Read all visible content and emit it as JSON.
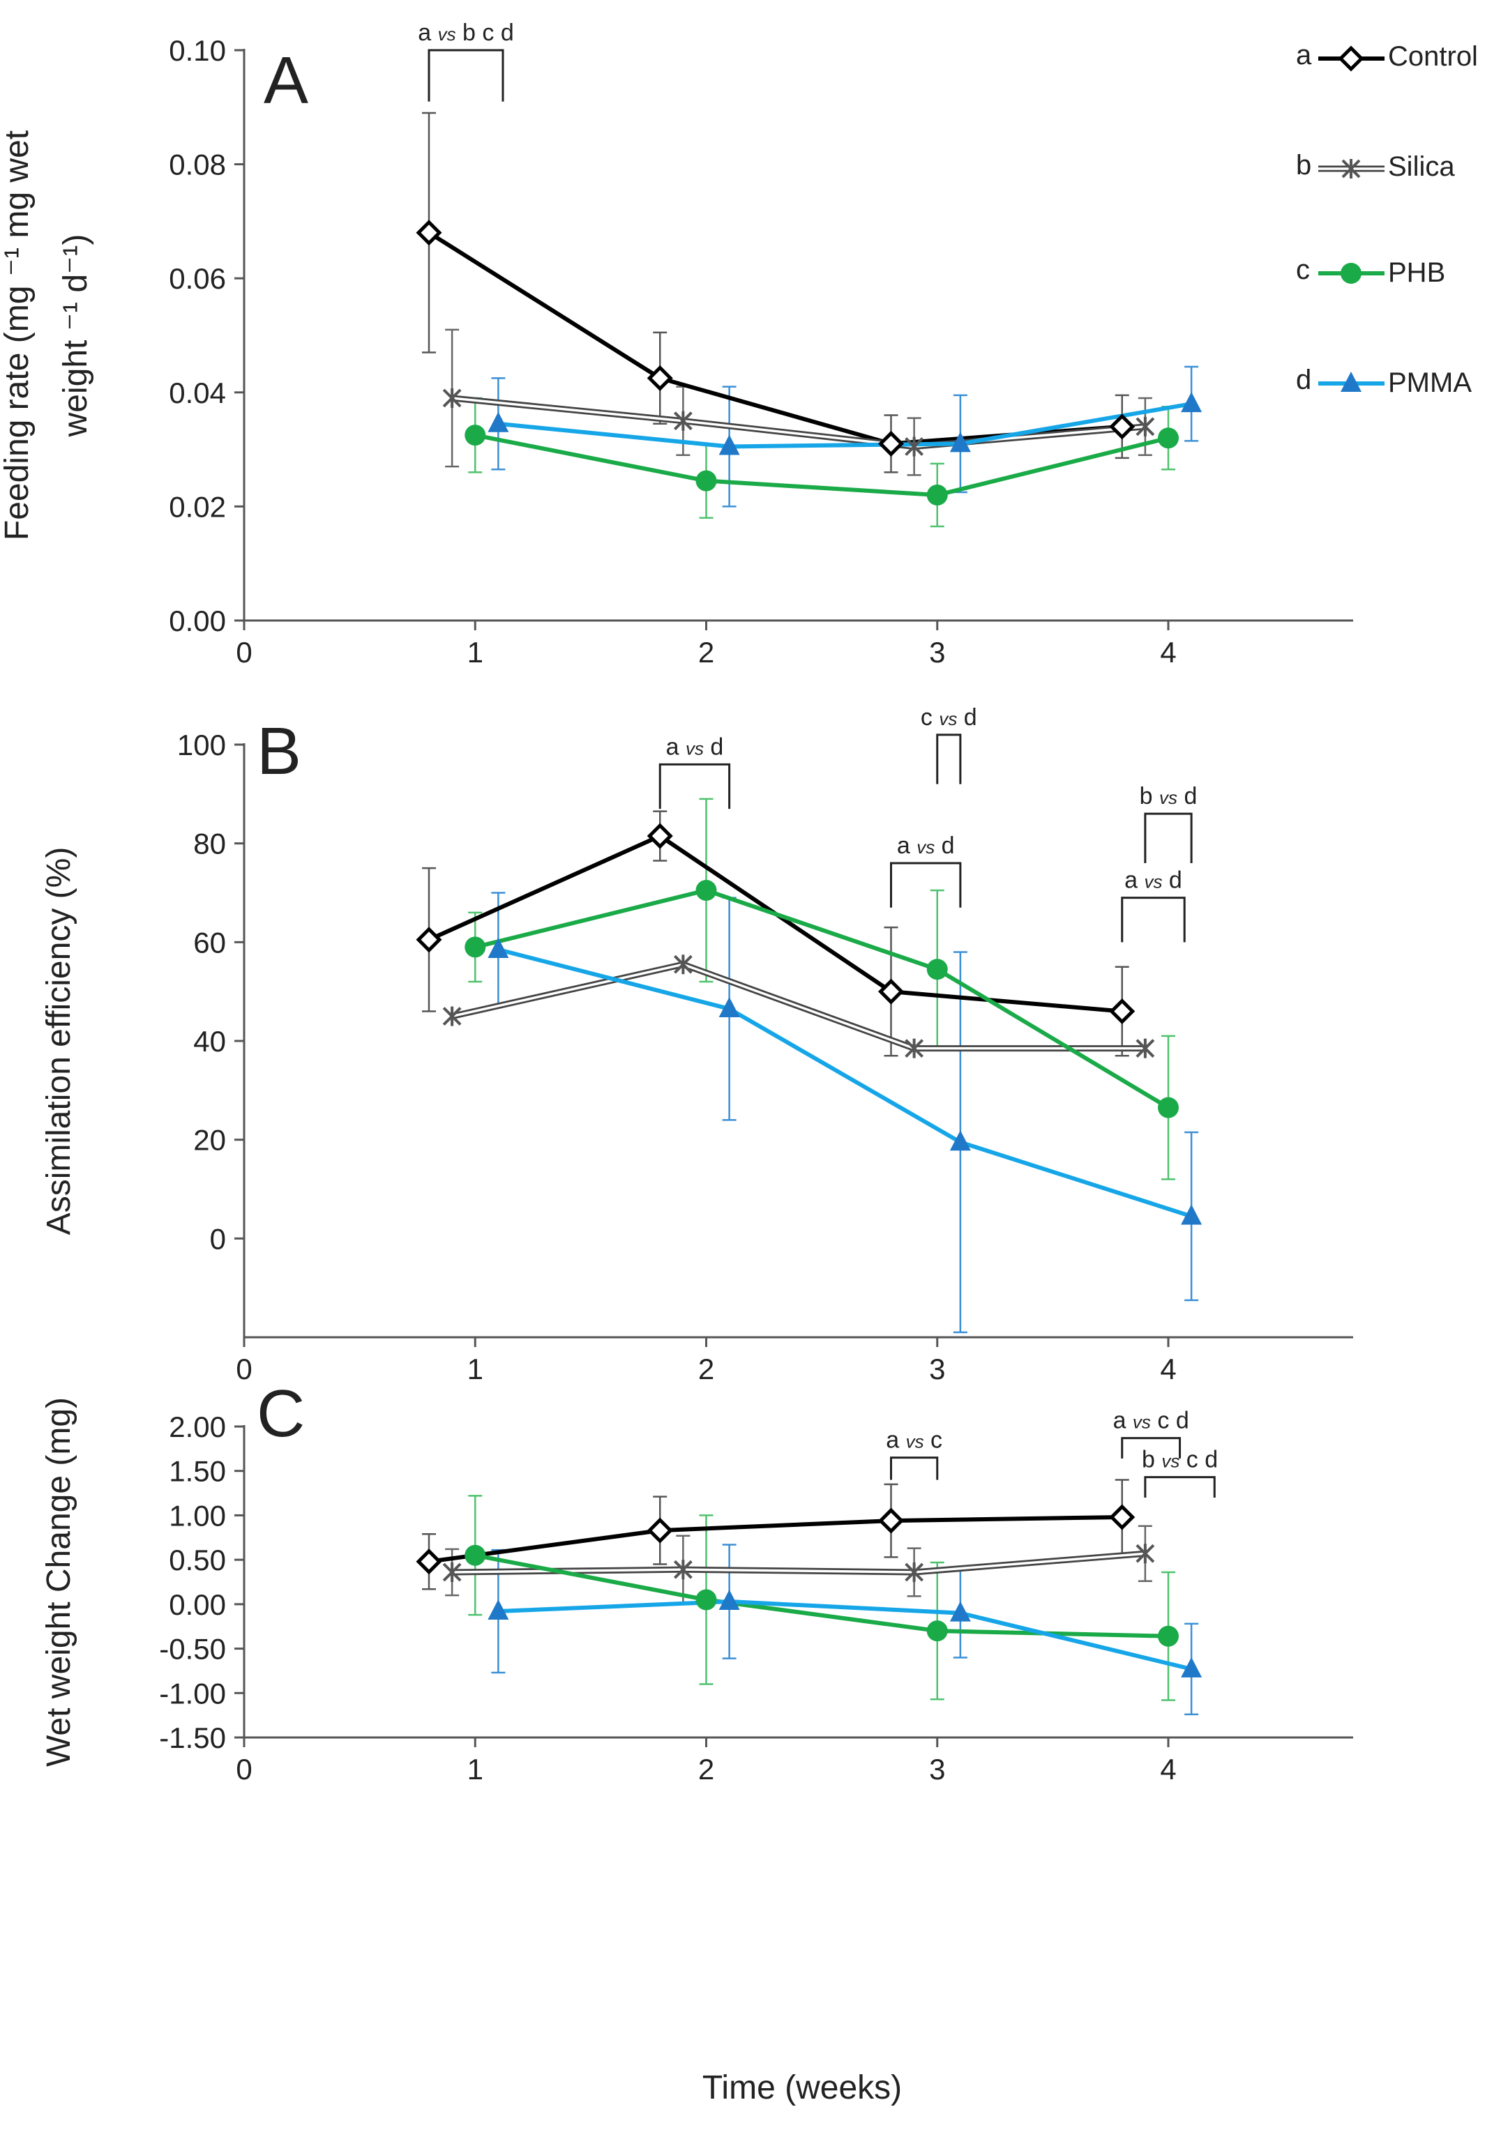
{
  "figure": {
    "xlabel": "Time (weeks)",
    "colors": {
      "control": "#000000",
      "silica": "#777777",
      "phb": "#1aaa48",
      "pmma": "#16a6e8",
      "pmma_marker": "#1f78c8",
      "axis": "#555555"
    }
  },
  "legend": {
    "entries": [
      {
        "letter": "a",
        "label": "Control",
        "series": "control"
      },
      {
        "letter": "b",
        "label": "Silica",
        "series": "silica"
      },
      {
        "letter": "c",
        "label": "PHB",
        "series": "phb"
      },
      {
        "letter": "d",
        "label": "PMMA",
        "series": "pmma"
      }
    ]
  },
  "chart_data": [
    {
      "type": "line",
      "panel": "A",
      "ylabel_lines": [
        "Feeding rate (mg ⁻¹ mg wet",
        "weight ⁻¹ d⁻¹)"
      ],
      "xlim": [
        0,
        4.8
      ],
      "ylim": [
        0,
        0.1
      ],
      "xticks": [
        0,
        1,
        2,
        3,
        4
      ],
      "xtick_labels": [
        "0",
        "1",
        "2",
        "3",
        "4"
      ],
      "yticks": [
        0,
        0.02,
        0.04,
        0.06,
        0.08,
        0.1
      ],
      "ytick_labels": [
        "0.00",
        "0.02",
        "0.04",
        "0.06",
        "0.08",
        "0.10"
      ],
      "series": [
        {
          "key": "control",
          "name": "Control",
          "x": [
            0.8,
            1.8,
            2.8,
            3.8
          ],
          "y": [
            0.068,
            0.0425,
            0.031,
            0.034
          ],
          "err": [
            0.021,
            0.008,
            0.005,
            0.0055
          ]
        },
        {
          "key": "silica",
          "name": "Silica",
          "x": [
            0.9,
            1.9,
            2.9,
            3.9
          ],
          "y": [
            0.039,
            0.035,
            0.0305,
            0.034
          ],
          "err": [
            0.012,
            0.006,
            0.005,
            0.005
          ]
        },
        {
          "key": "phb",
          "name": "PHB",
          "x": [
            1.0,
            2.0,
            3.0,
            4.0
          ],
          "y": [
            0.0325,
            0.0245,
            0.022,
            0.032
          ],
          "err": [
            0.0065,
            0.0065,
            0.0055,
            0.0055
          ]
        },
        {
          "key": "pmma",
          "name": "PMMA",
          "x": [
            1.1,
            2.1,
            3.1,
            4.1
          ],
          "y": [
            0.0345,
            0.0305,
            0.031,
            0.038
          ],
          "err": [
            0.008,
            0.0105,
            0.0085,
            0.0065
          ]
        }
      ],
      "annotations": [
        {
          "text_a": "a",
          "vs": "vs",
          "text_b": "b c d",
          "x1": 0.8,
          "x2": 1.12,
          "y_bot": 0.091,
          "y_top": 0.1
        }
      ]
    },
    {
      "type": "line",
      "panel": "B",
      "ylabel_lines": [
        "Assimilation efficiency (%)"
      ],
      "xlim": [
        0,
        4.8
      ],
      "ylim": [
        -20,
        100
      ],
      "xticks": [
        0,
        1,
        2,
        3,
        4
      ],
      "xtick_labels": [
        "0",
        "1",
        "2",
        "3",
        "4"
      ],
      "yticks": [
        0,
        20,
        40,
        60,
        80,
        100
      ],
      "ytick_labels": [
        "0",
        "20",
        "40",
        "60",
        "80",
        "100"
      ],
      "series": [
        {
          "key": "control",
          "name": "Control",
          "x": [
            0.8,
            1.8,
            2.8,
            3.8
          ],
          "y": [
            60.5,
            81.5,
            50,
            46
          ],
          "err": [
            14.5,
            5,
            13,
            9
          ]
        },
        {
          "key": "silica",
          "name": "Silica",
          "x": [
            0.9,
            1.9,
            2.9,
            3.9
          ],
          "y": [
            45,
            55.5,
            38.5,
            38.5
          ],
          "err": [
            0,
            0,
            0,
            0
          ]
        },
        {
          "key": "phb",
          "name": "PHB",
          "x": [
            1.0,
            2.0,
            3.0,
            4.0
          ],
          "y": [
            59,
            70.5,
            54.5,
            26.5
          ],
          "err": [
            7,
            18.5,
            16,
            14.5
          ]
        },
        {
          "key": "pmma",
          "name": "PMMA",
          "x": [
            1.1,
            2.1,
            3.1,
            4.1
          ],
          "y": [
            58.5,
            46.5,
            19.5,
            4.5
          ],
          "err": [
            11.5,
            22.5,
            38.5,
            17
          ]
        }
      ],
      "annotations": [
        {
          "text_a": "a",
          "vs": "vs",
          "text_b": "d",
          "x1": 1.8,
          "x2": 2.1,
          "y_bot": 87,
          "y_top": 96
        },
        {
          "text_a": "c",
          "vs": "vs",
          "text_b": "d",
          "x1": 3.0,
          "x2": 3.1,
          "y_bot": 92,
          "y_top": 102
        },
        {
          "text_a": "a",
          "vs": "vs",
          "text_b": "d",
          "x1": 2.8,
          "x2": 3.1,
          "y_bot": 67,
          "y_top": 76
        },
        {
          "text_a": "b",
          "vs": "vs",
          "text_b": "d",
          "x1": 3.9,
          "x2": 4.1,
          "y_bot": 76,
          "y_top": 86
        },
        {
          "text_a": "a",
          "vs": "vs",
          "text_b": "d",
          "x1": 3.8,
          "x2": 4.07,
          "y_bot": 60,
          "y_top": 69
        }
      ]
    },
    {
      "type": "line",
      "panel": "C",
      "ylabel_lines": [
        "Wet weight Change (mg)"
      ],
      "xlim": [
        0,
        4.8
      ],
      "ylim": [
        -1.5,
        2.0
      ],
      "xticks": [
        0,
        1,
        2,
        3,
        4
      ],
      "xtick_labels": [
        "0",
        "1",
        "2",
        "3",
        "4"
      ],
      "yticks": [
        -1.5,
        -1.0,
        -0.5,
        0,
        0.5,
        1.0,
        1.5,
        2.0
      ],
      "ytick_labels": [
        "-1.50",
        "-1.00",
        "-0.50",
        "0.00",
        "0.50",
        "1.00",
        "1.50",
        "2.00"
      ],
      "series": [
        {
          "key": "control",
          "name": "Control",
          "x": [
            0.8,
            1.8,
            2.8,
            3.8
          ],
          "y": [
            0.48,
            0.83,
            0.94,
            0.98
          ],
          "err": [
            0.31,
            0.38,
            0.41,
            0.42
          ]
        },
        {
          "key": "silica",
          "name": "Silica",
          "x": [
            0.9,
            1.9,
            2.9,
            3.9
          ],
          "y": [
            0.36,
            0.39,
            0.36,
            0.57
          ],
          "err": [
            0.26,
            0.38,
            0.27,
            0.31
          ]
        },
        {
          "key": "phb",
          "name": "PHB",
          "x": [
            1.0,
            2.0,
            3.0,
            4.0
          ],
          "y": [
            0.55,
            0.05,
            -0.3,
            -0.36
          ],
          "err": [
            0.67,
            0.95,
            0.77,
            0.72
          ]
        },
        {
          "key": "pmma",
          "name": "PMMA",
          "x": [
            1.1,
            2.1,
            3.1,
            4.1
          ],
          "y": [
            -0.08,
            0.03,
            -0.1,
            -0.73
          ],
          "err": [
            0.69,
            0.64,
            0.5,
            0.51
          ]
        }
      ],
      "annotations": [
        {
          "text_a": "a",
          "vs": "vs",
          "text_b": "c",
          "x1": 2.8,
          "x2": 3.0,
          "y_bot": 1.4,
          "y_top": 1.65
        },
        {
          "text_a": "a",
          "vs": "vs",
          "text_b": "c d",
          "x1": 3.8,
          "x2": 4.05,
          "y_bot": 1.64,
          "y_top": 1.87
        },
        {
          "text_a": "b",
          "vs": "vs",
          "text_b": "c d",
          "x1": 3.9,
          "x2": 4.2,
          "y_bot": 1.2,
          "y_top": 1.43
        }
      ]
    }
  ]
}
